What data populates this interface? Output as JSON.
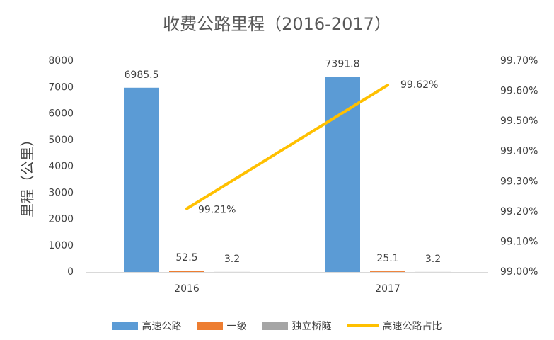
{
  "chart_data": {
    "type": "bar",
    "title": "收费公路里程（2016-2017）",
    "ylabel": "里程（公里）",
    "categories": [
      "2016",
      "2017"
    ],
    "ylim": [
      0,
      8000
    ],
    "y_ticks": [
      "0",
      "1000",
      "2000",
      "3000",
      "4000",
      "5000",
      "6000",
      "7000",
      "8000"
    ],
    "y2lim": [
      0.99,
      0.997
    ],
    "y2_ticks": [
      "99.00%",
      "99.10%",
      "99.20%",
      "99.30%",
      "99.40%",
      "99.50%",
      "99.60%",
      "99.70%"
    ],
    "series": [
      {
        "name": "高速公路",
        "values": [
          6985.5,
          7391.8
        ],
        "labels": [
          "6985.5",
          "7391.8"
        ],
        "color": "#5B9BD5"
      },
      {
        "name": "一级",
        "values": [
          52.5,
          25.1
        ],
        "labels": [
          "52.5",
          "25.1"
        ],
        "color": "#ED7D31"
      },
      {
        "name": "独立桥隧",
        "values": [
          3.2,
          3.2
        ],
        "labels": [
          "3.2",
          "3.2"
        ],
        "color": "#A5A5A5"
      }
    ],
    "line_series": {
      "name": "高速公路占比",
      "axis": "secondary",
      "values": [
        0.9921,
        0.9962
      ],
      "labels": [
        "99.21%",
        "99.62%"
      ],
      "color": "#FFC000"
    },
    "grid": false,
    "legend_position": "bottom"
  }
}
